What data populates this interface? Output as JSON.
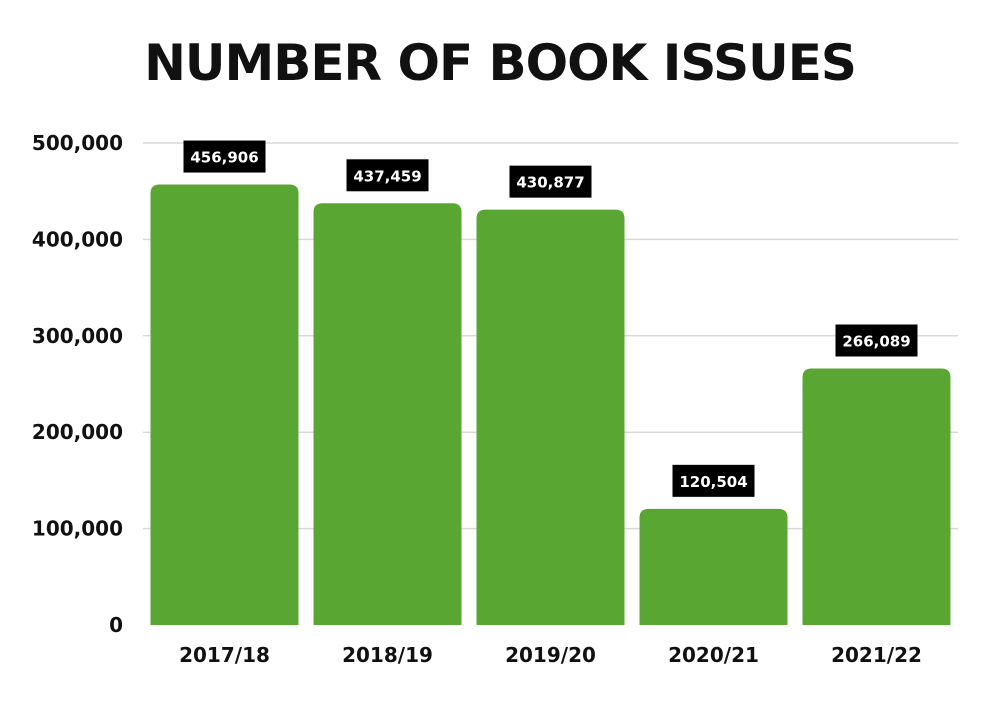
{
  "chart_data": {
    "type": "bar",
    "title": "NUMBER OF BOOK ISSUES",
    "categories": [
      "2017/18",
      "2018/19",
      "2019/20",
      "2020/21",
      "2021/22"
    ],
    "values": [
      456906,
      437459,
      430877,
      120504,
      266089
    ],
    "data_labels": [
      "456,906",
      "437,459",
      "430,877",
      "120,504",
      "266,089"
    ],
    "ylim": [
      0,
      500000
    ],
    "yticks": [
      0,
      100000,
      200000,
      300000,
      400000,
      500000
    ],
    "ytick_labels": [
      "0",
      "100,000",
      "200,000",
      "300,000",
      "400,000",
      "500,000"
    ],
    "xlabel": "",
    "ylabel": "",
    "grid": true,
    "legend": "none",
    "colors": {
      "bar": "#5aa632",
      "label_bg": "#000000",
      "label_text": "#ffffff",
      "grid": "#d9d9d9",
      "text": "#111111"
    }
  }
}
